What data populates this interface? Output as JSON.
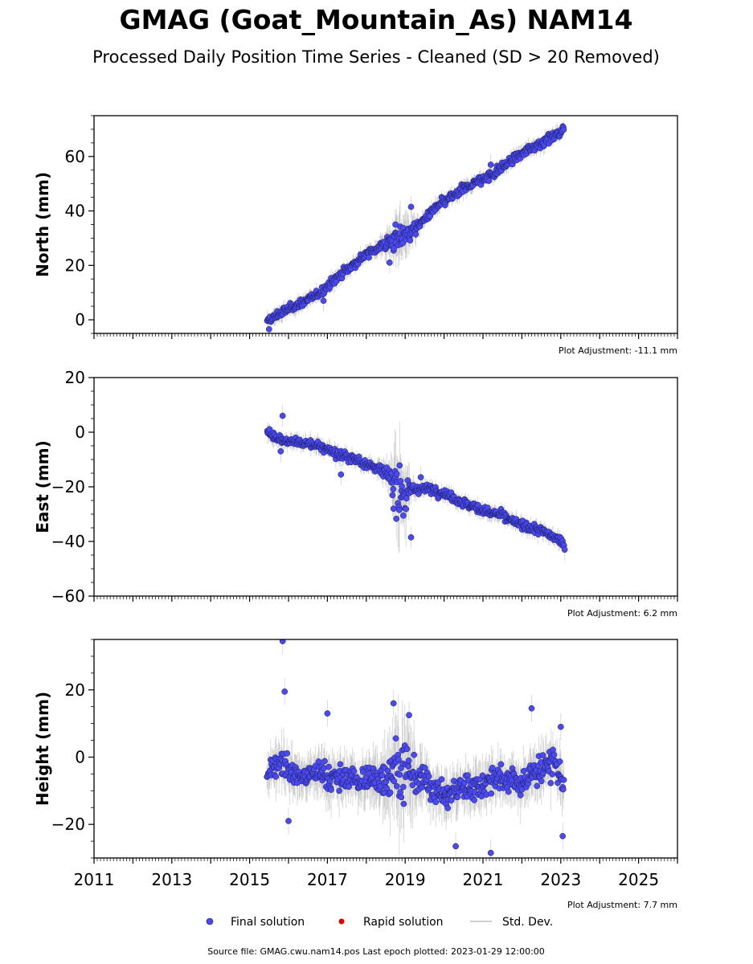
{
  "figure": {
    "title": "GMAG (Goat_Mountain_As) NAM14",
    "subtitle": "Processed Daily Position Time Series - Cleaned (SD > 20 Removed)",
    "footer": "Source file: GMAG.cwu.nam14.pos  Last epoch plotted: 2023-01-29 12:00:00"
  },
  "legend": {
    "final_label": "Final solution",
    "rapid_label": "Rapid solution",
    "std_label": "Std. Dev."
  },
  "colors": {
    "final": "#4a4af0",
    "rapid": "#dd0000",
    "std_dev": "#808080",
    "marker_edge": "#1a1a5a"
  },
  "chart_data": [
    {
      "type": "scatter",
      "title": "",
      "ylabel": "North (mm)",
      "xlim": [
        2011,
        2026
      ],
      "ylim": [
        -5,
        75
      ],
      "yticks": [
        0,
        20,
        40,
        60
      ],
      "x_tick_labels": [],
      "adjustment": "Plot Adjustment: -11.1 mm",
      "x": [
        2015.45,
        2015.6,
        2015.8,
        2016.0,
        2016.3,
        2016.6,
        2016.9,
        2017.2,
        2017.5,
        2017.8,
        2018.1,
        2018.4,
        2018.7,
        2018.9,
        2019.1,
        2019.3,
        2019.5,
        2019.7,
        2020.0,
        2020.3,
        2020.6,
        2020.9,
        2021.2,
        2021.5,
        2021.8,
        2022.1,
        2022.4,
        2022.7,
        2023.0,
        2023.08
      ],
      "y": [
        -1,
        0.5,
        2.5,
        4,
        6,
        8,
        11,
        15,
        18.5,
        22,
        25,
        27.5,
        29,
        30.5,
        32,
        34,
        37,
        40,
        43.5,
        46,
        49,
        51,
        53,
        56,
        59.5,
        62,
        64.5,
        66.5,
        69,
        70.5
      ],
      "std_dev_y": [
        3,
        2.5,
        2.5,
        2.5,
        2.5,
        2.5,
        2.5,
        2.5,
        2.5,
        2.5,
        2.5,
        3,
        7,
        8,
        6,
        3,
        2.5,
        2.5,
        2.5,
        2.5,
        2.5,
        2.5,
        2.5,
        2.5,
        2.5,
        2.5,
        2.5,
        2.5,
        2.5,
        2.5
      ],
      "outliers": [
        [
          2015.5,
          -3.5
        ],
        [
          2016.9,
          7
        ],
        [
          2019.15,
          41.5
        ],
        [
          2018.75,
          35
        ],
        [
          2018.6,
          21
        ],
        [
          2021.2,
          57
        ]
      ]
    },
    {
      "type": "scatter",
      "title": "",
      "ylabel": "East (mm)",
      "xlim": [
        2011,
        2026
      ],
      "ylim": [
        -60,
        20
      ],
      "yticks": [
        -60,
        -40,
        -20,
        0,
        20
      ],
      "x_tick_labels": [],
      "adjustment": "Plot Adjustment: 6.2 mm",
      "x": [
        2015.45,
        2015.6,
        2015.8,
        2016.0,
        2016.3,
        2016.6,
        2016.9,
        2017.2,
        2017.5,
        2017.8,
        2018.1,
        2018.4,
        2018.6,
        2018.75,
        2018.9,
        2019.05,
        2019.2,
        2019.4,
        2019.7,
        2020.0,
        2020.3,
        2020.6,
        2020.9,
        2021.2,
        2021.5,
        2021.8,
        2022.1,
        2022.4,
        2022.7,
        2023.0,
        2023.08
      ],
      "y": [
        0,
        -1,
        -2.5,
        -3.5,
        -4,
        -4.5,
        -5.5,
        -7.5,
        -9,
        -10.5,
        -12,
        -14,
        -16,
        -19,
        -22,
        -24,
        -21,
        -20.5,
        -21,
        -22.5,
        -24.5,
        -26.5,
        -28,
        -29.5,
        -30.5,
        -33,
        -34.5,
        -35.5,
        -37.5,
        -40,
        -41
      ],
      "std_dev_y": [
        3,
        2.5,
        2.5,
        2.5,
        2.5,
        2.5,
        2.5,
        2.5,
        2.5,
        2.5,
        2.5,
        3,
        5,
        12,
        14,
        10,
        3,
        2.5,
        2.5,
        2.5,
        2.5,
        2.5,
        2.5,
        2.5,
        2.5,
        2.5,
        2.5,
        2.5,
        2.5,
        2.5,
        2.5
      ],
      "outliers": [
        [
          2015.85,
          6
        ],
        [
          2015.8,
          -7
        ],
        [
          2017.35,
          -15.5
        ],
        [
          2019.15,
          -38.5
        ],
        [
          2018.95,
          -30.5
        ],
        [
          2018.7,
          -28
        ],
        [
          2019.4,
          -16.5
        ],
        [
          2023.1,
          -43
        ]
      ]
    },
    {
      "type": "scatter",
      "title": "",
      "ylabel": "Height (mm)",
      "xlim": [
        2011,
        2026
      ],
      "ylim": [
        -30,
        35
      ],
      "yticks": [
        -20,
        0,
        20
      ],
      "x_tick_labels": [
        "2011",
        "2013",
        "2015",
        "2017",
        "2019",
        "2021",
        "2023",
        "2025"
      ],
      "adjustment": "Plot Adjustment: 7.7 mm",
      "x": [
        2015.45,
        2015.6,
        2015.8,
        2016.0,
        2016.3,
        2016.6,
        2016.9,
        2017.2,
        2017.5,
        2017.8,
        2018.1,
        2018.4,
        2018.7,
        2018.9,
        2019.1,
        2019.3,
        2019.5,
        2019.8,
        2020.1,
        2020.4,
        2020.7,
        2021.0,
        2021.3,
        2021.6,
        2021.9,
        2022.2,
        2022.5,
        2022.8,
        2023.0,
        2023.08
      ],
      "y": [
        -5,
        -2,
        -1,
        -4,
        -6,
        -5,
        -4,
        -7,
        -6,
        -7,
        -7,
        -6,
        -3,
        -4,
        -5,
        -6,
        -7,
        -10,
        -12,
        -9,
        -9,
        -8,
        -6,
        -7,
        -8,
        -6,
        -3,
        -2,
        -5,
        -9
      ],
      "std_dev_y": [
        5,
        5,
        6,
        6,
        5,
        5,
        6,
        6,
        6,
        6,
        6,
        7,
        12,
        14,
        12,
        8,
        6,
        6,
        6,
        6,
        6,
        6,
        6,
        6,
        6,
        7,
        6,
        6,
        6,
        6
      ],
      "outliers": [
        [
          2015.85,
          34.5
        ],
        [
          2015.9,
          19.5
        ],
        [
          2017.0,
          13
        ],
        [
          2018.7,
          16
        ],
        [
          2019.1,
          12.5
        ],
        [
          2020.3,
          -26.5
        ],
        [
          2021.2,
          -28.5
        ],
        [
          2022.25,
          14.5
        ],
        [
          2023.0,
          9
        ],
        [
          2023.05,
          -23.5
        ],
        [
          2016.0,
          -19
        ]
      ]
    }
  ]
}
